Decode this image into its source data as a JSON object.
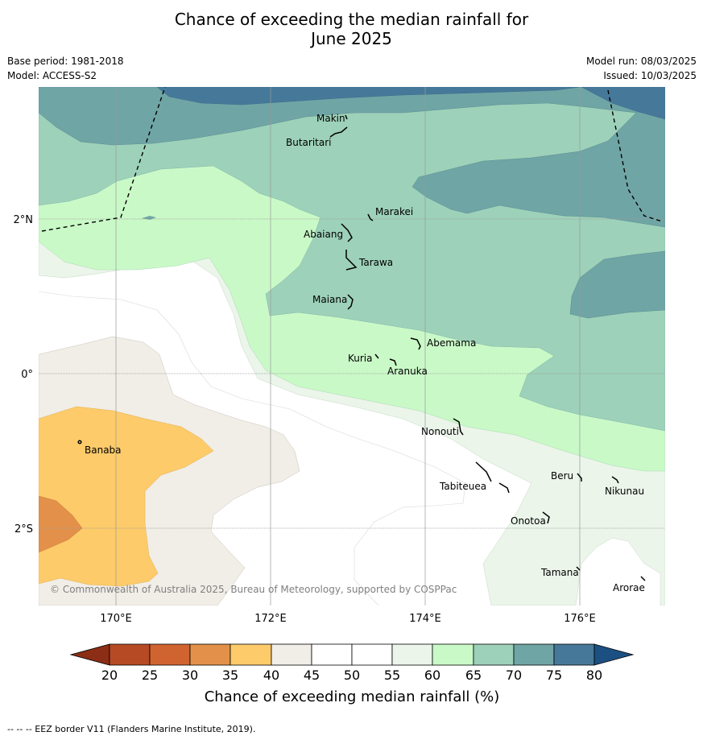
{
  "title_line1": "Chance of exceeding the median rainfall for",
  "title_line2": "June 2025",
  "base_period": "Base period: 1981-2018",
  "model": "Model: ACCESS-S2",
  "model_run": "Model run: 08/03/2025",
  "issued": "Issued: 10/03/2025",
  "copyright": "© Commonwealth of Australia 2025, Bureau of Meteorology, supported by COSPPac",
  "lon_labels": [
    "170°E",
    "172°E",
    "174°E",
    "176°E"
  ],
  "lat_labels": [
    "2°N",
    "0°",
    "2°S"
  ],
  "islands": [
    "Makin",
    "Butaritari",
    "Marakei",
    "Abaiang",
    "Tarawa",
    "Maiana",
    "Abemama",
    "Kuria",
    "Aranuka",
    "Banaba",
    "Nonouti",
    "Beru",
    "Nikunau",
    "Tabiteuea",
    "Onotoa",
    "Tamana",
    "Arorae"
  ],
  "colorbar": {
    "ticks": [
      "20",
      "25",
      "30",
      "35",
      "40",
      "45",
      "50",
      "55",
      "60",
      "65",
      "70",
      "75",
      "80"
    ],
    "label": "Chance of exceeding median rainfall (%)",
    "colors": {
      "below20": "#8c2d16",
      "c20_25": "#b64a24",
      "c25_30": "#d06430",
      "c30_35": "#e3914a",
      "c35_40": "#fdcb6a",
      "c40_45": "#f1ede7",
      "c45_50": "#ffffff",
      "c50_55": "#ffffff",
      "c55_60": "#ebf5ea",
      "c60_65": "#caf9c8",
      "c65_70": "#9dd1b9",
      "c70_75": "#70a5a6",
      "c75_80": "#467999",
      "above80": "#1c4f82"
    }
  },
  "footer": "--  --  -- EEZ border V11 (Flanders Marine Institute, 2019)."
}
